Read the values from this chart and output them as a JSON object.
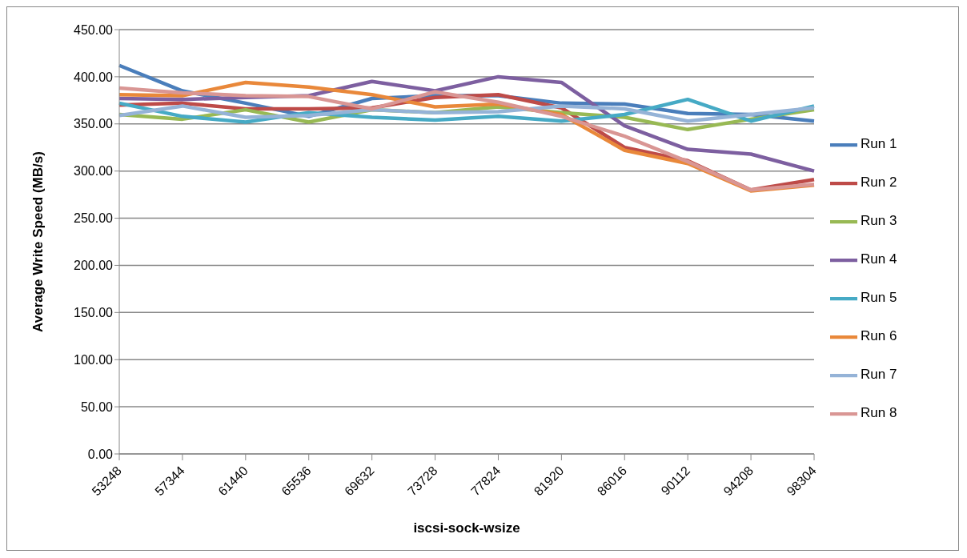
{
  "chart_data": {
    "type": "line",
    "xlabel": "iscsi-sock-wsize",
    "ylabel": "Average Write Speed (MB/s)",
    "categories": [
      "53248",
      "57344",
      "61440",
      "65536",
      "69632",
      "73728",
      "77824",
      "81920",
      "86016",
      "90112",
      "94208",
      "98304"
    ],
    "series": [
      {
        "name": "Run 1",
        "color": "#4a7ebb",
        "values": [
          412,
          385,
          372,
          358,
          377,
          380,
          380,
          372,
          371,
          361,
          360,
          353
        ]
      },
      {
        "name": "Run 2",
        "color": "#be4b48",
        "values": [
          370,
          372,
          366,
          366,
          367,
          378,
          381,
          367,
          325,
          311,
          280,
          291
        ]
      },
      {
        "name": "Run 3",
        "color": "#98b954",
        "values": [
          360,
          355,
          365,
          352,
          365,
          362,
          368,
          362,
          357,
          344,
          355,
          365
        ]
      },
      {
        "name": "Run 4",
        "color": "#7d5fa0",
        "values": [
          377,
          376,
          378,
          380,
          395,
          385,
          400,
          394,
          348,
          323,
          318,
          300
        ]
      },
      {
        "name": "Run 5",
        "color": "#46aac5",
        "values": [
          372,
          358,
          352,
          362,
          357,
          354,
          358,
          353,
          360,
          376,
          353,
          369
        ]
      },
      {
        "name": "Run 6",
        "color": "#e9883a",
        "values": [
          381,
          380,
          394,
          389,
          381,
          368,
          371,
          360,
          322,
          308,
          279,
          285
        ]
      },
      {
        "name": "Run 7",
        "color": "#95b3d7",
        "values": [
          359,
          369,
          357,
          359,
          365,
          362,
          363,
          369,
          366,
          353,
          360,
          367
        ]
      },
      {
        "name": "Run 8",
        "color": "#d99694",
        "values": [
          388,
          383,
          380,
          379,
          366,
          384,
          373,
          358,
          337,
          310,
          280,
          286
        ]
      }
    ],
    "ylim": [
      0,
      450
    ],
    "yticks": [
      {
        "value": 0,
        "label": "0.00"
      },
      {
        "value": 50,
        "label": "50.00"
      },
      {
        "value": 100,
        "label": "100.00"
      },
      {
        "value": 150,
        "label": "150.00"
      },
      {
        "value": 200,
        "label": "200.00"
      },
      {
        "value": 250,
        "label": "250.00"
      },
      {
        "value": 300,
        "label": "300.00"
      },
      {
        "value": 350,
        "label": "350.00"
      },
      {
        "value": 400,
        "label": "400.00"
      },
      {
        "value": 450,
        "label": "450.00"
      }
    ],
    "grid": "y",
    "legend": "right",
    "marker": "none",
    "line_style": "solid"
  }
}
